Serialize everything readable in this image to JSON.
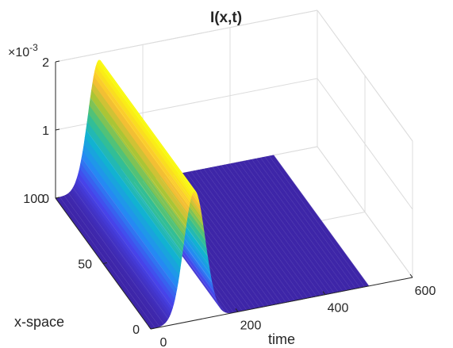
{
  "chart_data": {
    "type": "surface",
    "title": "I(x,t)",
    "xlabel": "time",
    "ylabel": "x-space",
    "zlabel": "",
    "z_exponent_label": "×10-3",
    "z_multiplier_base": "×10",
    "z_multiplier_power": "-3",
    "xlim": [
      0,
      600
    ],
    "ylim": [
      0,
      100
    ],
    "zlim": [
      0,
      0.002
    ],
    "x_ticks": [
      0,
      200,
      400,
      600
    ],
    "y_ticks": [
      0,
      50,
      100
    ],
    "z_ticks": [
      0,
      1,
      2
    ],
    "x_tick_labels": [
      "0",
      "200",
      "400",
      "600"
    ],
    "y_tick_labels": [
      "0",
      "50",
      "100"
    ],
    "z_tick_labels": [
      "0",
      "1",
      "2"
    ],
    "grid": true,
    "colormap": "parula",
    "data_extent": {
      "time": [
        0,
        500
      ],
      "x_space": [
        0,
        100
      ]
    },
    "pulse": {
      "description": "Gaussian-shaped wave in time, constant along x-space",
      "peak_time": 100,
      "width_time": 35,
      "peak_value": 0.0019,
      "baseline": 0
    },
    "colors": {
      "low": "#3e26a8",
      "high": "#f9fb0e",
      "grid": "#dcdcdc",
      "axis": "#262626"
    }
  }
}
